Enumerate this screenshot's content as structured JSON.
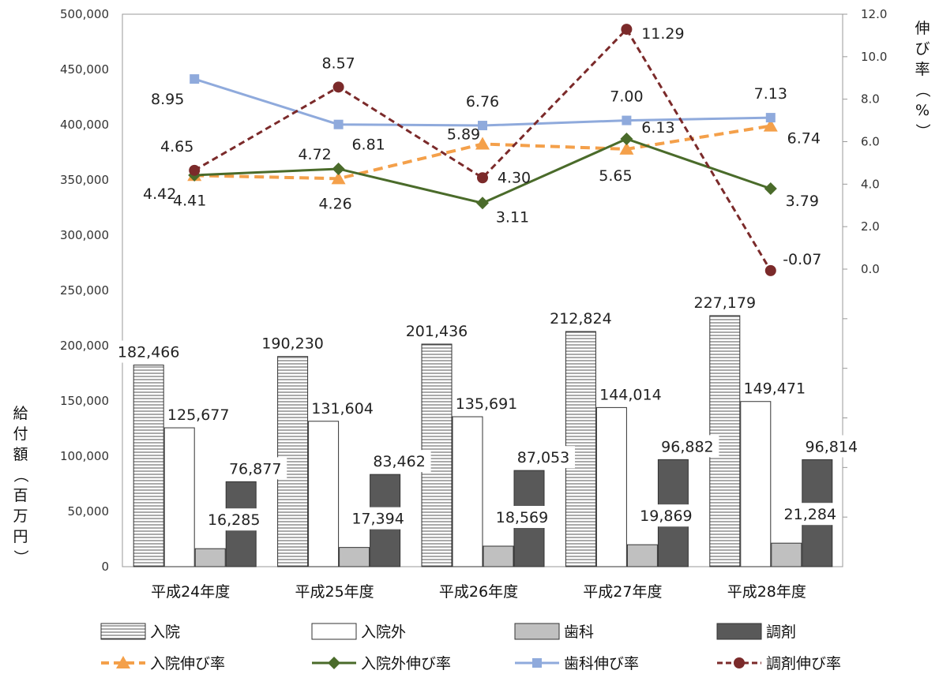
{
  "chart_data": {
    "type": "bar+line",
    "categories": [
      "平成24年度",
      "平成25年度",
      "平成26年度",
      "平成27年度",
      "平成28年度"
    ],
    "bar_series": [
      {
        "name": "入院",
        "values": [
          182466,
          190230,
          201436,
          212824,
          227179
        ],
        "labels": [
          "182,466",
          "190,230",
          "201,436",
          "212,824",
          "227,179"
        ],
        "fill": "hatch"
      },
      {
        "name": "入院外",
        "values": [
          125677,
          131604,
          135691,
          144014,
          149471
        ],
        "labels": [
          "125,677",
          "131,604",
          "135,691",
          "144,014",
          "149,471"
        ],
        "fill": "#ffffff"
      },
      {
        "name": "歯科",
        "values": [
          16285,
          17394,
          18569,
          19869,
          21284
        ],
        "labels": [
          "16,285",
          "17,394",
          "18,569",
          "19,869",
          "21,284"
        ],
        "fill": "#c0c0c0"
      },
      {
        "name": "調剤",
        "values": [
          76877,
          83462,
          87053,
          96882,
          96814
        ],
        "labels": [
          "76,877",
          "83,462",
          "87,053",
          "96,882",
          "96,814"
        ],
        "fill": "#595959"
      }
    ],
    "line_series": [
      {
        "name": "入院伸び率",
        "values": [
          4.41,
          4.26,
          5.89,
          5.65,
          6.74
        ],
        "labels": [
          "4.41",
          "4.26",
          "5.89",
          "5.65",
          "6.74"
        ],
        "color": "#f4a04a",
        "marker": "triangle",
        "dash": "dashed"
      },
      {
        "name": "入院外伸び率",
        "values": [
          4.42,
          4.72,
          3.11,
          6.13,
          3.79
        ],
        "labels": [
          "4.42",
          "4.72",
          "3.11",
          "6.13",
          "3.79"
        ],
        "color": "#4a6b2a",
        "marker": "diamond",
        "dash": "solid"
      },
      {
        "name": "歯科伸び率",
        "values": [
          8.95,
          6.81,
          6.76,
          7.0,
          7.13
        ],
        "labels": [
          "8.95",
          "6.81",
          "6.76",
          "7.00",
          "7.13"
        ],
        "color": "#8faadc",
        "marker": "square",
        "dash": "solid"
      },
      {
        "name": "調剤伸び率",
        "values": [
          4.65,
          8.57,
          4.3,
          11.29,
          -0.07
        ],
        "labels": [
          "4.65",
          "8.57",
          "4.30",
          "11.29",
          "-0.07"
        ],
        "color": "#7b2a2a",
        "marker": "circle",
        "dash": "dashed"
      }
    ],
    "ylabel_left": "給付額（百万円）",
    "ylabel_right": "伸び率（%）",
    "ylim_left": [
      0,
      500000
    ],
    "yticks_left": [
      "0",
      "50,000",
      "100,000",
      "150,000",
      "200,000",
      "250,000",
      "300,000",
      "350,000",
      "400,000",
      "450,000",
      "500,000"
    ],
    "ylim_right": [
      0,
      12
    ],
    "yticks_right": [
      "0.0",
      "2.0",
      "4.0",
      "6.0",
      "8.0",
      "10.0",
      "12.0"
    ],
    "grid": false,
    "legend_position": "bottom"
  }
}
